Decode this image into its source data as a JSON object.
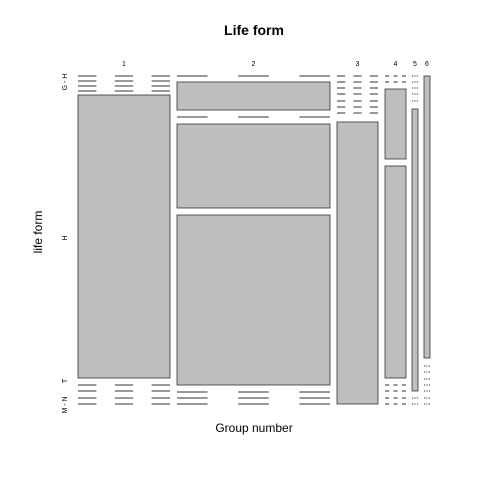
{
  "chart_data": {
    "type": "mosaic",
    "title": "Life form",
    "xlabel": "Group number",
    "ylabel": "life form",
    "x_categories": [
      "1",
      "2",
      "3",
      "4",
      "5",
      "6"
    ],
    "y_categories": [
      "G - H",
      "H",
      "T",
      "M - N"
    ],
    "y_tick_labels": [
      "G - H",
      "H",
      "T",
      "M - N"
    ],
    "group_width_fraction": [
      0.27,
      0.45,
      0.12,
      0.06,
      0.02,
      0.02
    ],
    "segments": [
      {
        "group": "1",
        "y_category": "H",
        "fraction": 1.0
      },
      {
        "group": "2",
        "y_category": "G - H",
        "fraction": 0.1
      },
      {
        "group": "2",
        "y_category": "H",
        "fraction": 0.9
      },
      {
        "group": "3",
        "y_category": "H",
        "fraction": 0.96
      },
      {
        "group": "3",
        "y_category": "T",
        "fraction": 0.04
      },
      {
        "group": "4",
        "y_category": "G - H",
        "fraction": 0.24
      },
      {
        "group": "4",
        "y_category": "H",
        "fraction": 0.76
      },
      {
        "group": "5",
        "y_category": "H",
        "fraction": 1.0
      },
      {
        "group": "6",
        "y_category": "G - H",
        "fraction": 0.0
      },
      {
        "group": "6",
        "y_category": "H",
        "fraction": 1.0
      }
    ],
    "fill_color": "#bebebe",
    "stroke_color": "#333333"
  }
}
